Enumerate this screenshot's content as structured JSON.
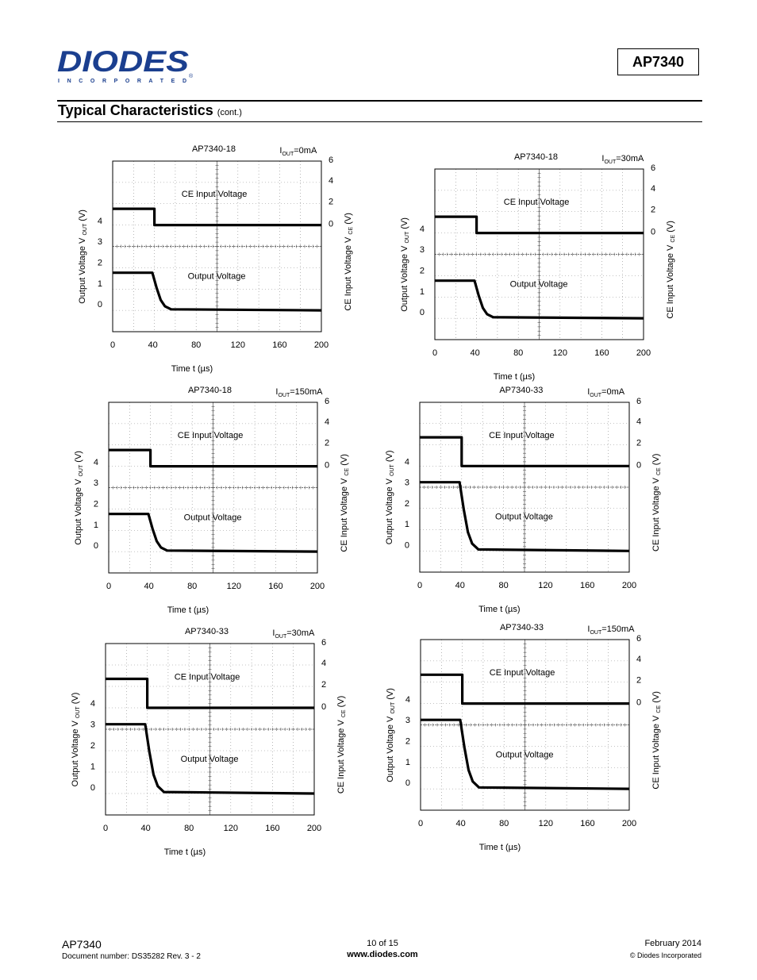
{
  "header": {
    "logo_text": "DIODES",
    "logo_sub": "I N C O R P O R A T E D",
    "logo_reg": "®",
    "part_number": "AP7340",
    "brand_color": "#1b3f8f"
  },
  "section": {
    "title": "Typical Characteristics",
    "title_sub": "(cont.)"
  },
  "chart_data": [
    {
      "type": "line",
      "title": "AP7340-18",
      "condition_prefix": "I",
      "condition_sub": "OUT",
      "condition_suffix": "=0mA",
      "x_ticks": [
        "0",
        "40",
        "80",
        "120",
        "160",
        "200"
      ],
      "xlim": [
        0,
        200
      ],
      "xlabel": "Time t (µs)",
      "y_left_ticks": [
        "4",
        "3",
        "2",
        "1",
        "0"
      ],
      "ylabel_left": [
        "Output Voltage V ",
        "OUT",
        " (V)"
      ],
      "y_right_ticks": [
        "6",
        "4",
        "2",
        "0"
      ],
      "ylabel_right": [
        "CE Input Voltage V ",
        "CE",
        " (V)"
      ],
      "series": [
        {
          "name": "CE Input Voltage",
          "x": [
            0,
            40,
            40,
            200
          ],
          "y": [
            1.7,
            1.7,
            0,
            0
          ]
        },
        {
          "name": "Output Voltage",
          "x": [
            0,
            38,
            42,
            46,
            50,
            56,
            200
          ],
          "y": [
            1.8,
            1.8,
            1.1,
            0.5,
            0.2,
            0.05,
            0.0
          ]
        }
      ]
    },
    {
      "type": "line",
      "title": "AP7340-18",
      "condition_prefix": "I",
      "condition_sub": "OUT",
      "condition_suffix": "=30mA",
      "x_ticks": [
        "0",
        "40",
        "80",
        "120",
        "160",
        "200"
      ],
      "xlim": [
        0,
        200
      ],
      "xlabel": "Time t (µs)",
      "y_left_ticks": [
        "4",
        "3",
        "2",
        "1",
        "0"
      ],
      "ylabel_left": [
        "Output Voltage V ",
        "OUT",
        " (V)"
      ],
      "y_right_ticks": [
        "6",
        "4",
        "2",
        "0"
      ],
      "ylabel_right": [
        "CE Input Voltage V ",
        "CE",
        " (V)"
      ],
      "series": [
        {
          "name": "CE Input Voltage",
          "x": [
            0,
            40,
            40,
            200
          ],
          "y": [
            1.7,
            1.7,
            0,
            0
          ]
        },
        {
          "name": "Output Voltage",
          "x": [
            0,
            38,
            42,
            46,
            50,
            56,
            200
          ],
          "y": [
            1.8,
            1.8,
            1.1,
            0.5,
            0.2,
            0.05,
            0.0
          ]
        }
      ]
    },
    {
      "type": "line",
      "title": "AP7340-18",
      "condition_prefix": "I",
      "condition_sub": "OUT",
      "condition_suffix": "=150mA",
      "x_ticks": [
        "0",
        "40",
        "80",
        "120",
        "160",
        "200"
      ],
      "xlim": [
        0,
        200
      ],
      "xlabel": "Time t (µs)",
      "y_left_ticks": [
        "4",
        "3",
        "2",
        "1",
        "0"
      ],
      "ylabel_left": [
        "Output Voltage V ",
        "OUT",
        " (V)"
      ],
      "y_right_ticks": [
        "6",
        "4",
        "2",
        "0"
      ],
      "ylabel_right": [
        "CE Input Voltage V ",
        "CE",
        " (V)"
      ],
      "series": [
        {
          "name": "CE Input Voltage",
          "x": [
            0,
            40,
            40,
            200
          ],
          "y": [
            1.7,
            1.7,
            0,
            0
          ]
        },
        {
          "name": "Output Voltage",
          "x": [
            0,
            38,
            42,
            46,
            50,
            56,
            200
          ],
          "y": [
            1.8,
            1.8,
            1.1,
            0.5,
            0.2,
            0.05,
            0.0
          ]
        }
      ]
    },
    {
      "type": "line",
      "title": "AP7340-33",
      "condition_prefix": "I",
      "condition_sub": "OUT",
      "condition_suffix": "=0mA",
      "x_ticks": [
        "0",
        "40",
        "80",
        "120",
        "160",
        "200"
      ],
      "xlim": [
        0,
        200
      ],
      "xlabel": "Time t (µs)",
      "y_left_ticks": [
        "4",
        "3",
        "2",
        "1",
        "0"
      ],
      "ylabel_left": [
        "Output Voltage V ",
        "OUT",
        " (V)"
      ],
      "y_right_ticks": [
        "6",
        "4",
        "2",
        "0"
      ],
      "ylabel_right": [
        "CE Input Voltage V ",
        "CE",
        " (V)"
      ],
      "series": [
        {
          "name": "CE Input Voltage",
          "x": [
            0,
            40,
            40,
            200
          ],
          "y": [
            3.0,
            3.0,
            0,
            0
          ]
        },
        {
          "name": "Output Voltage",
          "x": [
            0,
            38,
            42,
            46,
            50,
            56,
            200
          ],
          "y": [
            3.3,
            3.3,
            2.0,
            0.9,
            0.35,
            0.07,
            0.0
          ]
        }
      ]
    },
    {
      "type": "line",
      "title": "AP7340-33",
      "condition_prefix": "I",
      "condition_sub": "OUT",
      "condition_suffix": "=30mA",
      "x_ticks": [
        "0",
        "40",
        "80",
        "120",
        "160",
        "200"
      ],
      "xlim": [
        0,
        200
      ],
      "xlabel": "Time t (µs)",
      "y_left_ticks": [
        "4",
        "3",
        "2",
        "1",
        "0"
      ],
      "ylabel_left": [
        "Output Voltage V ",
        "OUT",
        " (V)"
      ],
      "y_right_ticks": [
        "6",
        "4",
        "2",
        "0"
      ],
      "ylabel_right": [
        "CE Input Voltage V ",
        "CE",
        " (V)"
      ],
      "series": [
        {
          "name": "CE Input Voltage",
          "x": [
            0,
            40,
            40,
            200
          ],
          "y": [
            3.0,
            3.0,
            0,
            0
          ]
        },
        {
          "name": "Output Voltage",
          "x": [
            0,
            38,
            42,
            46,
            50,
            56,
            200
          ],
          "y": [
            3.3,
            3.3,
            2.0,
            0.9,
            0.35,
            0.07,
            0.0
          ]
        }
      ]
    },
    {
      "type": "line",
      "title": "AP7340-33",
      "condition_prefix": "I",
      "condition_sub": "OUT",
      "condition_suffix": "=150mA",
      "x_ticks": [
        "0",
        "40",
        "80",
        "120",
        "160",
        "200"
      ],
      "xlim": [
        0,
        200
      ],
      "xlabel": "Time t (µs)",
      "y_left_ticks": [
        "4",
        "3",
        "2",
        "1",
        "0"
      ],
      "ylabel_left": [
        "Output Voltage V ",
        "OUT",
        " (V)"
      ],
      "y_right_ticks": [
        "6",
        "4",
        "2",
        "0"
      ],
      "ylabel_right": [
        "CE Input Voltage V ",
        "CE",
        " (V)"
      ],
      "series": [
        {
          "name": "CE Input Voltage",
          "x": [
            0,
            40,
            40,
            200
          ],
          "y": [
            3.0,
            3.0,
            0,
            0
          ]
        },
        {
          "name": "Output Voltage",
          "x": [
            0,
            38,
            42,
            46,
            50,
            56,
            200
          ],
          "y": [
            3.3,
            3.3,
            2.0,
            0.9,
            0.35,
            0.07,
            0.0
          ]
        }
      ]
    }
  ],
  "footer": {
    "part": "AP7340",
    "doc_number": "Document number: DS35282 Rev. 3 - 2",
    "page": "10 of 15",
    "url": "www.diodes.com",
    "date": "February 2014",
    "copyright": "© Diodes Incorporated"
  }
}
